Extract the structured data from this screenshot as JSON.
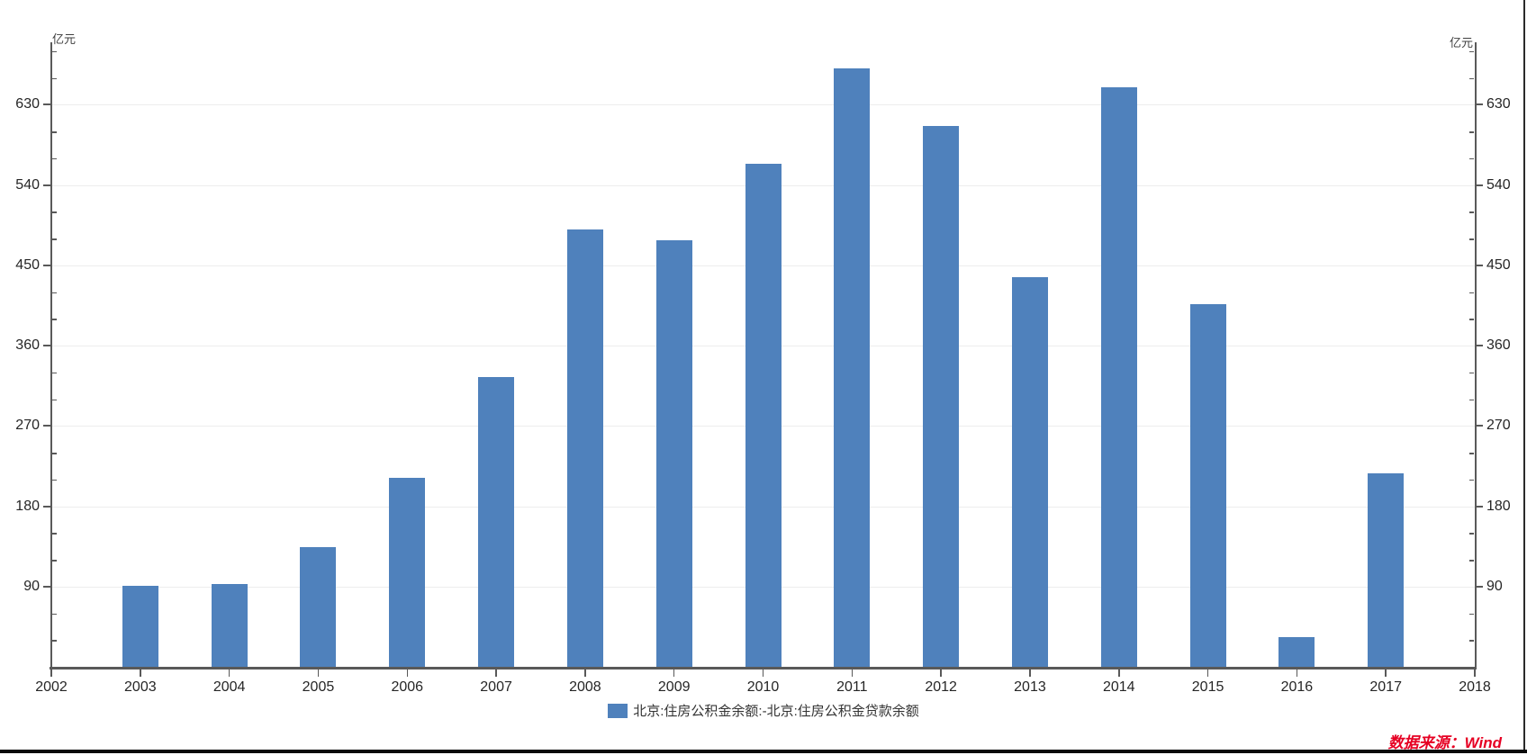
{
  "chart_data": {
    "type": "bar",
    "title": "",
    "y_unit": "亿元",
    "legend": "北京:住房公积金余额:-北京:住房公积金贷款余额",
    "categories": [
      "2003",
      "2004",
      "2005",
      "2006",
      "2007",
      "2008",
      "2009",
      "2010",
      "2011",
      "2012",
      "2013",
      "2014",
      "2015",
      "2016",
      "2017"
    ],
    "values": [
      91,
      93,
      134,
      212,
      325,
      490,
      478,
      564,
      671,
      606,
      437,
      650,
      406,
      33,
      217
    ],
    "x_axis_ticks": [
      "2002",
      "2003",
      "2004",
      "2005",
      "2006",
      "2007",
      "2008",
      "2009",
      "2010",
      "2011",
      "2012",
      "2013",
      "2014",
      "2015",
      "2016",
      "2017",
      "2018"
    ],
    "x_axis_range": [
      2002,
      2018
    ],
    "y_axis_ticks": [
      90,
      180,
      270,
      360,
      450,
      540,
      630
    ],
    "y_minor_step": 30,
    "ylim": [
      0,
      700
    ],
    "grid": true,
    "legend_position": "bottom-center",
    "colors": {
      "bar": "#4f81bc",
      "grid": "#ededed",
      "axis": "#595959",
      "label": "#262626",
      "source": "#e60023"
    }
  },
  "source_text": "数据来源：Wind"
}
